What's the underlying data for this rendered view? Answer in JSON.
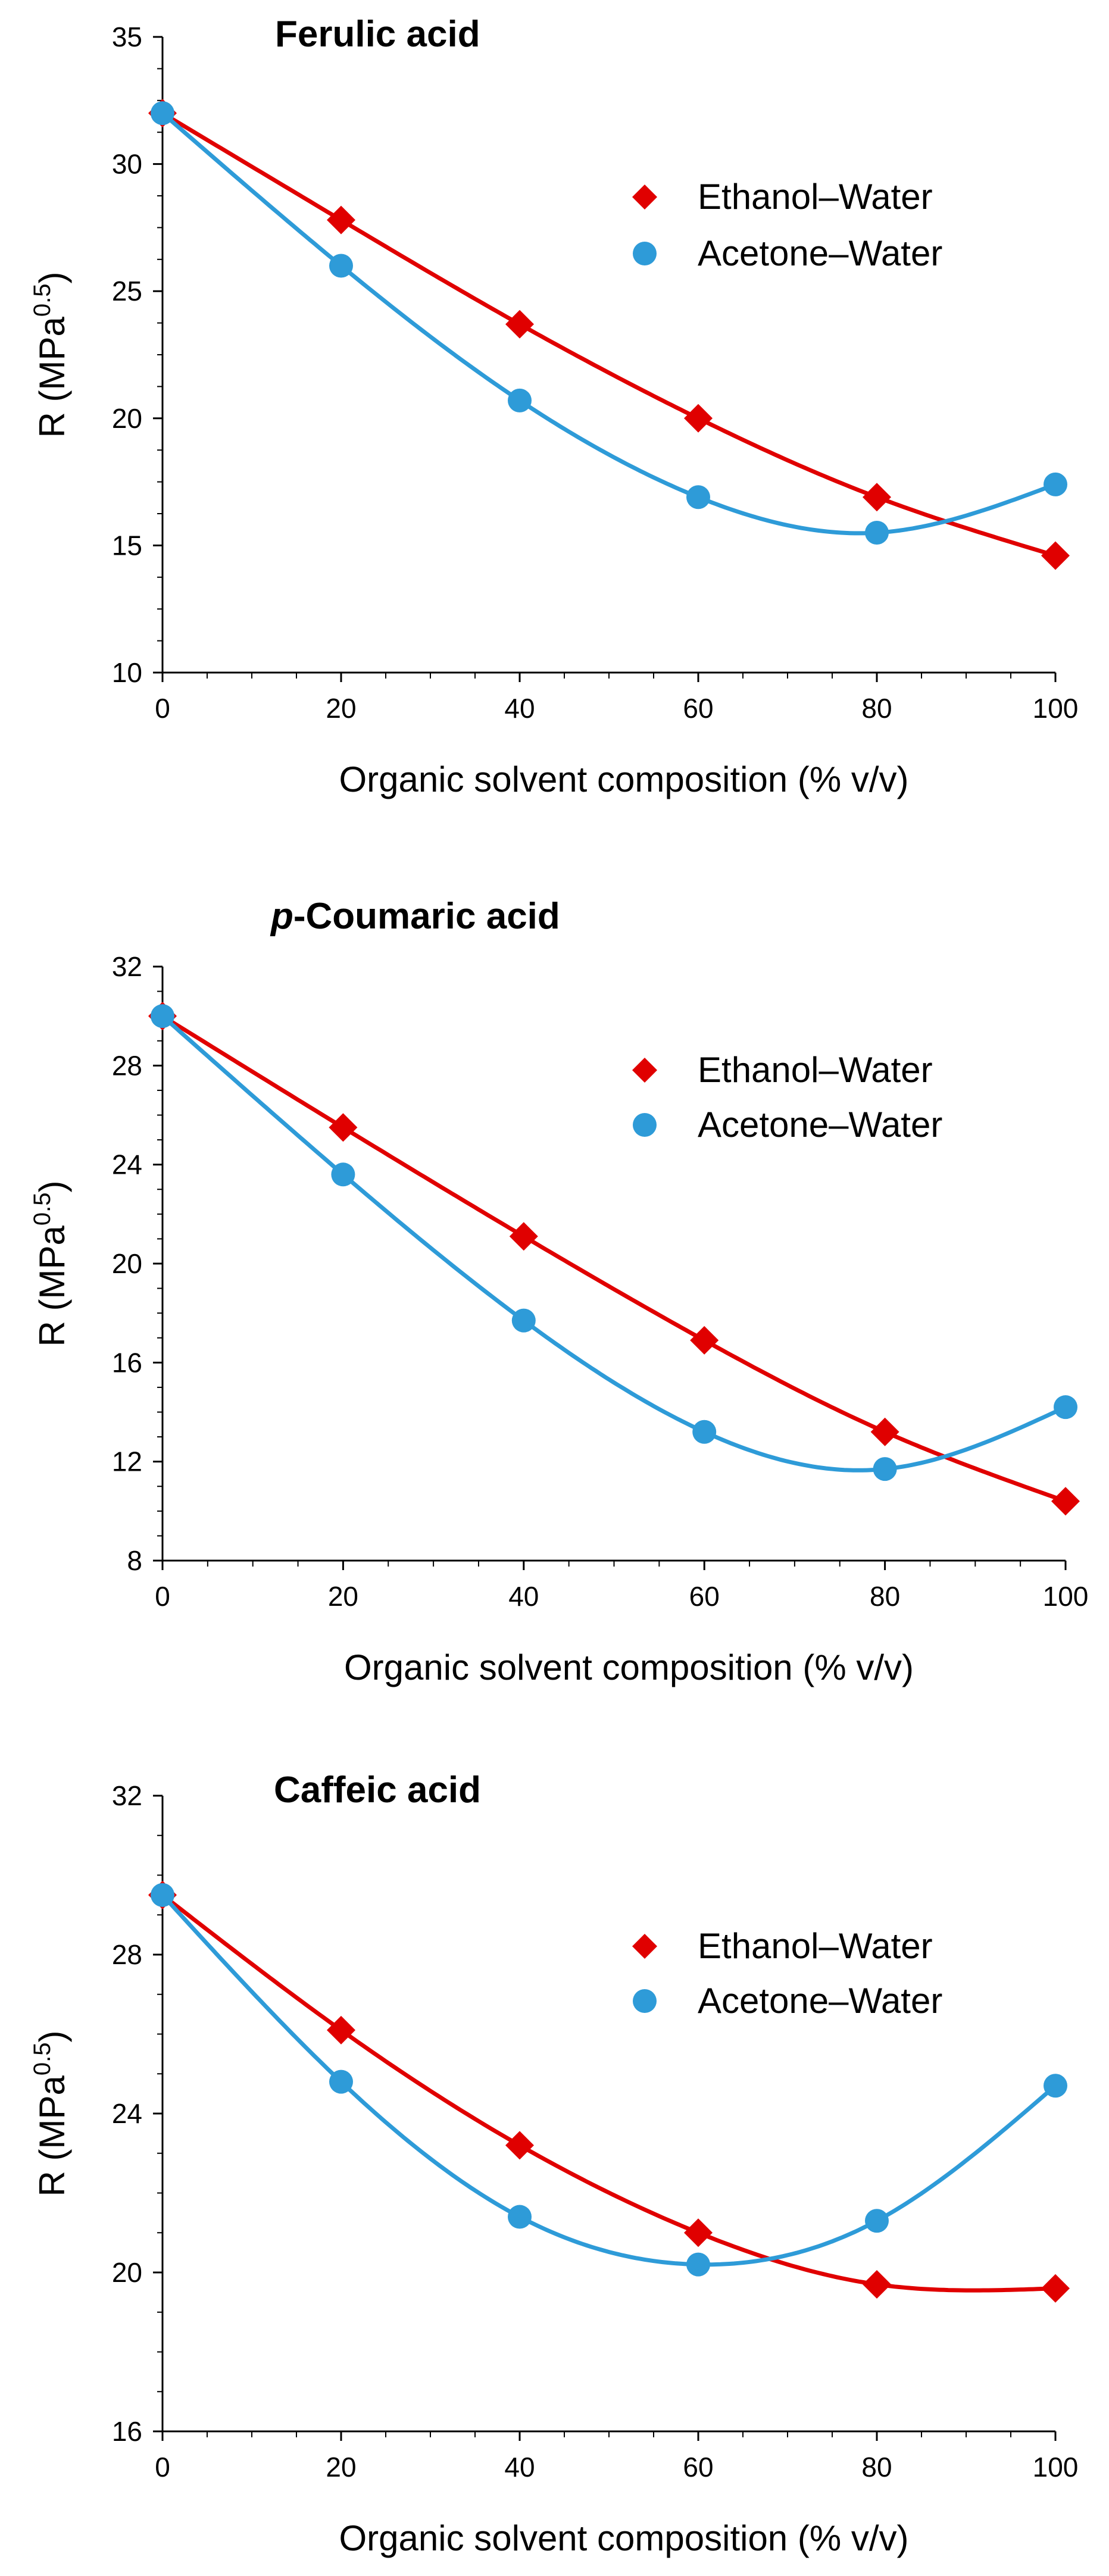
{
  "chart_data": [
    {
      "type": "scatter",
      "title": "Ferulic acid",
      "title_italic_prefix": "",
      "xlabel": "Organic solvent composition (% v/v)",
      "ylabel_main": "R (MPa",
      "ylabel_sup": "0.5",
      "ylabel_close": ")",
      "xlim": [
        0,
        100
      ],
      "ylim": [
        10,
        35
      ],
      "xticks": [
        0,
        20,
        40,
        60,
        80,
        100
      ],
      "yticks": [
        10,
        15,
        20,
        25,
        30,
        35
      ],
      "x": [
        0,
        20,
        40,
        60,
        80,
        100
      ],
      "legend_position": "upper-right",
      "series": [
        {
          "name": "Ethanol–Water",
          "marker": "diamond",
          "color": "#e00000",
          "values": [
            32.0,
            27.8,
            23.7,
            20.0,
            16.9,
            14.6
          ]
        },
        {
          "name": "Acetone–Water",
          "marker": "circle",
          "color": "#2e9bd8",
          "values": [
            32.0,
            26.0,
            20.7,
            16.9,
            15.5,
            17.4
          ]
        }
      ]
    },
    {
      "type": "scatter",
      "title": "-Coumaric acid",
      "title_italic_prefix": "p",
      "xlabel": "Organic solvent composition (% v/v)",
      "ylabel_main": "R (MPa",
      "ylabel_sup": "0.5",
      "ylabel_close": ")",
      "xlim": [
        0,
        100
      ],
      "ylim": [
        8,
        32
      ],
      "xticks": [
        0,
        20,
        40,
        60,
        80,
        100
      ],
      "yticks": [
        8,
        12,
        16,
        20,
        24,
        28,
        32
      ],
      "x": [
        0,
        20,
        40,
        60,
        80,
        100
      ],
      "legend_position": "upper-right",
      "series": [
        {
          "name": "Ethanol–Water",
          "marker": "diamond",
          "color": "#e00000",
          "values": [
            30.0,
            25.5,
            21.1,
            16.9,
            13.2,
            10.4
          ]
        },
        {
          "name": "Acetone–Water",
          "marker": "circle",
          "color": "#2e9bd8",
          "values": [
            30.0,
            23.6,
            17.7,
            13.2,
            11.7,
            14.2
          ]
        }
      ]
    },
    {
      "type": "scatter",
      "title": "Caffeic acid",
      "title_italic_prefix": "",
      "xlabel": "Organic solvent composition (% v/v)",
      "ylabel_main": "R (MPa",
      "ylabel_sup": "0.5",
      "ylabel_close": ")",
      "xlim": [
        0,
        100
      ],
      "ylim": [
        16,
        32
      ],
      "xticks": [
        0,
        20,
        40,
        60,
        80,
        100
      ],
      "yticks": [
        16,
        20,
        24,
        28,
        32
      ],
      "x": [
        0,
        20,
        40,
        60,
        80,
        100
      ],
      "legend_position": "upper-right",
      "series": [
        {
          "name": "Ethanol–Water",
          "marker": "diamond",
          "color": "#e00000",
          "values": [
            29.5,
            26.1,
            23.2,
            21.0,
            19.7,
            19.6
          ]
        },
        {
          "name": "Acetone–Water",
          "marker": "circle",
          "color": "#2e9bd8",
          "values": [
            29.5,
            24.8,
            21.4,
            20.2,
            21.3,
            24.7
          ]
        }
      ]
    }
  ]
}
